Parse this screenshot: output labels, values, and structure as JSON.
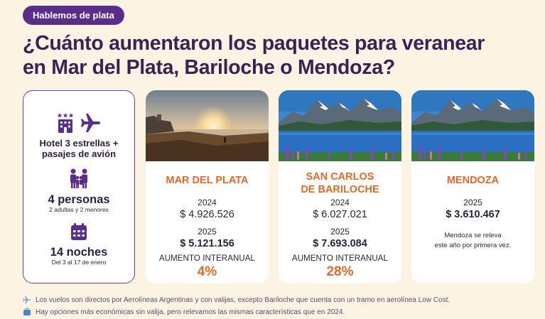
{
  "tag": "Hablemos de plata",
  "title_line1": "¿Cuánto aumentaron los paquetes para veranear",
  "title_line2": "en Mar del Plata, Bariloche o Mendoza?",
  "left_card": {
    "package_line1": "Hotel 3 estrellas +",
    "package_line2": "pasajes de avión",
    "people_main": "4 personas",
    "people_sub": "2 adultas y 2 menores",
    "nights_main": "14 noches",
    "nights_sub": "Del 3 al 17 de enero"
  },
  "cards": [
    {
      "city_line1": "MAR DEL PLATA",
      "city_line2": "",
      "year_a": "2024",
      "price_a": "$ 4.926.526",
      "year_b": "2025",
      "price_b": "$ 5.121.156",
      "increase_label": "AUMENTO INTERANUAL",
      "increase_value": "4%"
    },
    {
      "city_line1": "SAN CARLOS",
      "city_line2": "DE BARILOCHE",
      "year_a": "2024",
      "price_a": "$ 6.027.021",
      "year_b": "2025",
      "price_b": "$ 7.693.084",
      "increase_label": "AUMENTO INTERANUAL",
      "increase_value": "28%"
    },
    {
      "city_line1": "MENDOZA",
      "year_b": "2025",
      "price_b": "$ 3.610.467",
      "note_line1": "Mendoza se releva",
      "note_line2": "este año por primera vez."
    }
  ],
  "footnotes": [
    "Los vuelos son directos por Aerolíneas Argentinas y con valijas, excepto Bariloche que cuenta con un tramo en aerolínea Low Cost.",
    "Hay opciones más económicas sin valija, pero relevamos las mismas características que en 2024."
  ],
  "colors": {
    "accent_purple": "#5b2d8a",
    "accent_orange": "#e06a2c",
    "background": "#fdf3e3"
  }
}
